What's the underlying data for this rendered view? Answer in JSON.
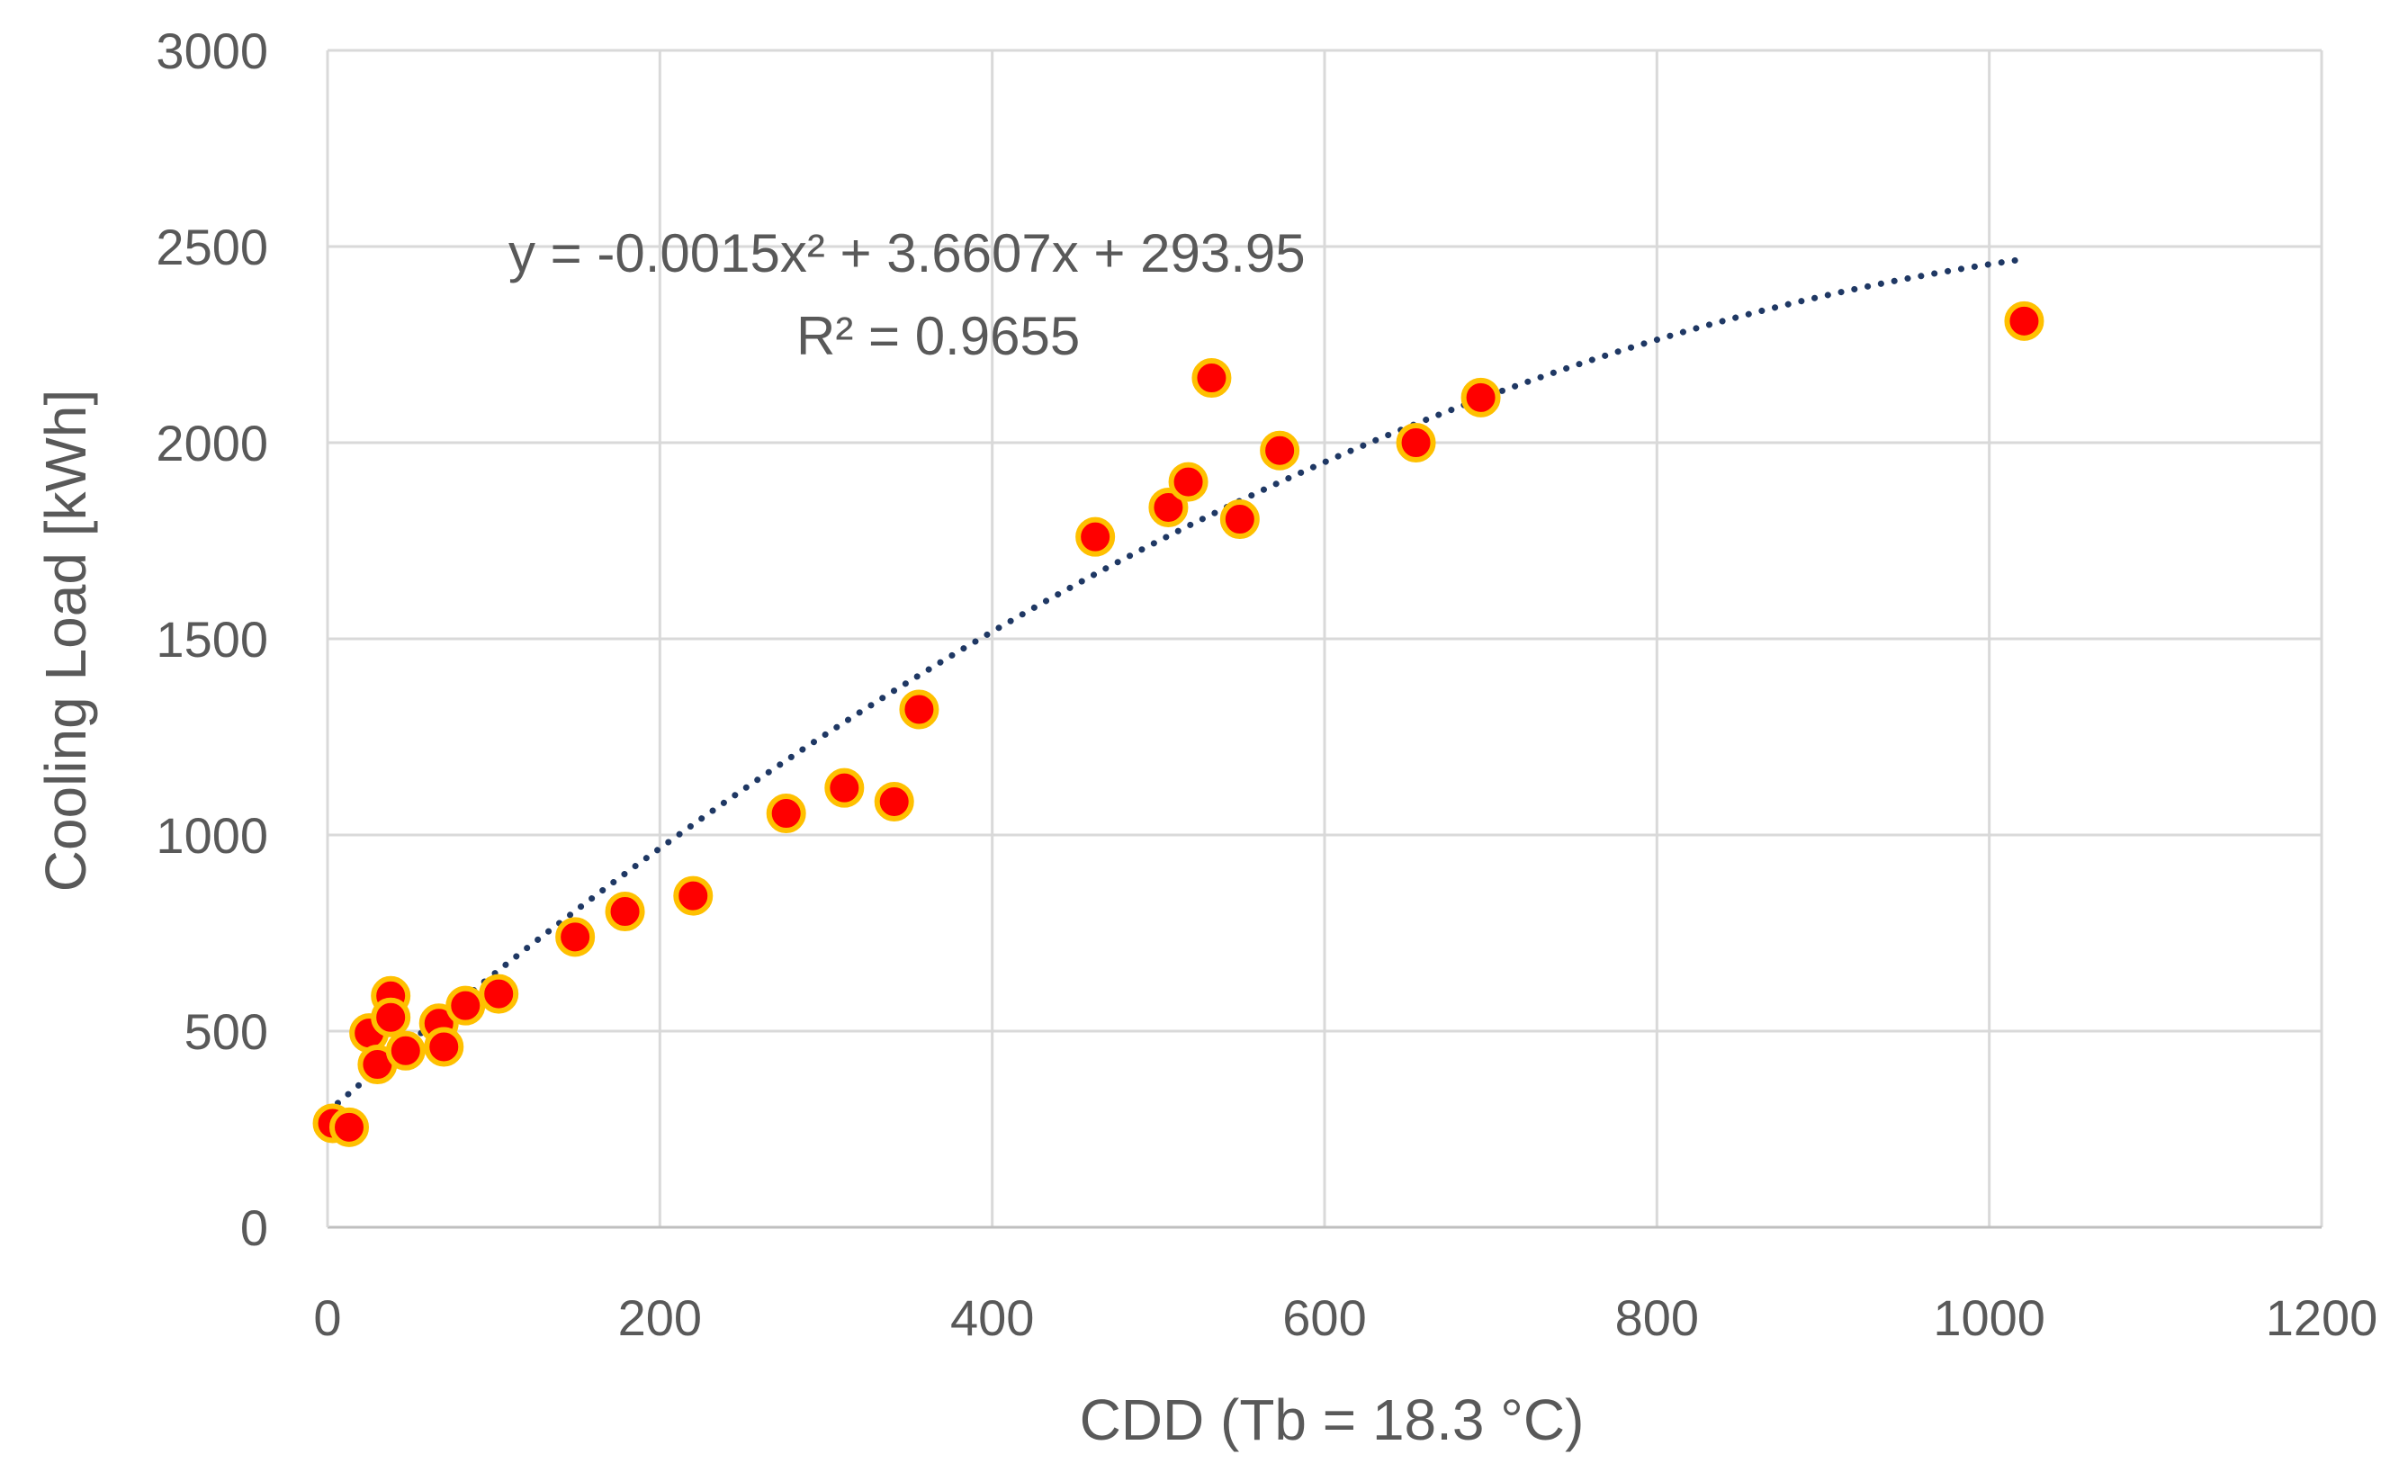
{
  "chart_data": {
    "type": "scatter",
    "title": "",
    "xlabel": "CDD (Tb = 18.3 °C)",
    "ylabel": "Cooling Load [kWh]",
    "xlim": [
      0,
      1200
    ],
    "ylim": [
      0,
      3000
    ],
    "x_ticks": [
      0,
      200,
      400,
      600,
      800,
      1000,
      1200
    ],
    "y_ticks": [
      0,
      500,
      1000,
      1500,
      2000,
      2500,
      3000
    ],
    "x_tick_labels": [
      "0",
      "200",
      "400",
      "600",
      "800",
      "1000",
      "1200"
    ],
    "y_tick_labels": [
      "0",
      "500",
      "1000",
      "1500",
      "2000",
      "2500",
      "3000"
    ],
    "grid": true,
    "series": [
      {
        "name": "Cooling Load",
        "marker_fill": "#ff0000",
        "marker_edge": "#ffc000",
        "points": [
          [
            3,
            265
          ],
          [
            13,
            255
          ],
          [
            25,
            495
          ],
          [
            30,
            415
          ],
          [
            38,
            590
          ],
          [
            38,
            535
          ],
          [
            47,
            450
          ],
          [
            67,
            520
          ],
          [
            70,
            460
          ],
          [
            83,
            565
          ],
          [
            103,
            595
          ],
          [
            149,
            740
          ],
          [
            179,
            805
          ],
          [
            220,
            845
          ],
          [
            276,
            1055
          ],
          [
            311,
            1120
          ],
          [
            341,
            1085
          ],
          [
            356,
            1320
          ],
          [
            462,
            1760
          ],
          [
            506,
            1835
          ],
          [
            518,
            1900
          ],
          [
            532,
            2165
          ],
          [
            549,
            1805
          ],
          [
            573,
            1980
          ],
          [
            655,
            2000
          ],
          [
            694,
            2115
          ],
          [
            1021,
            2310
          ]
        ]
      }
    ],
    "trendline": {
      "type": "polynomial",
      "order": 2,
      "coefficients": [
        -0.0015,
        3.6607,
        293.95
      ],
      "x_range": [
        0,
        1020
      ],
      "color": "#1f3864",
      "style": "dotted",
      "equation_text": "y = -0.0015x² + 3.6607x + 293.95",
      "r2_text": "R² = 0.9655"
    }
  }
}
